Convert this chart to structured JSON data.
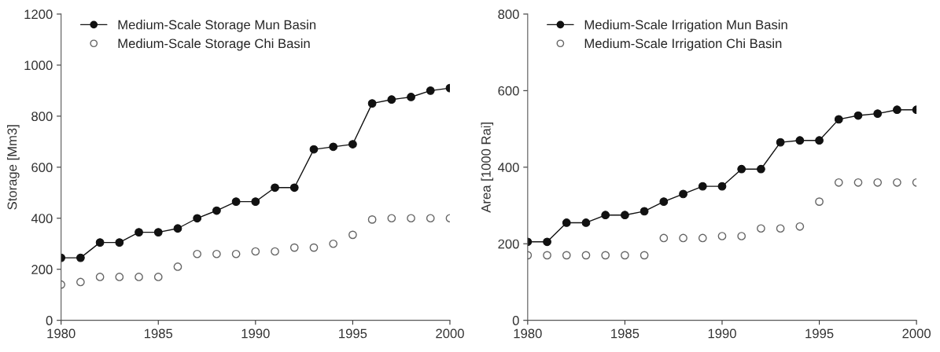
{
  "chart_data": [
    {
      "type": "line",
      "ylabel": "Storage [Mm3]",
      "x": [
        1980,
        1981,
        1982,
        1983,
        1984,
        1985,
        1986,
        1987,
        1988,
        1989,
        1990,
        1991,
        1992,
        1993,
        1994,
        1995,
        1996,
        1997,
        1998,
        1999,
        2000
      ],
      "series": [
        {
          "name": "Medium-Scale Storage Mun Basin",
          "color": "#111111",
          "values": [
            245,
            245,
            305,
            305,
            345,
            345,
            360,
            400,
            430,
            465,
            465,
            520,
            520,
            670,
            680,
            690,
            850,
            865,
            875,
            900,
            910
          ]
        },
        {
          "name": "Medium-Scale Storage Chi Basin",
          "color": "#666666",
          "type": "scatter",
          "values": [
            140,
            150,
            170,
            170,
            170,
            170,
            210,
            260,
            260,
            260,
            270,
            270,
            285,
            285,
            300,
            335,
            395,
            400,
            400,
            400,
            400
          ]
        }
      ],
      "xlim": [
        1980,
        2000
      ],
      "xticks": [
        1980,
        1985,
        1990,
        1995,
        2000
      ],
      "ylim": [
        0,
        1200
      ],
      "yticks": [
        0,
        200,
        400,
        600,
        800,
        1000,
        1200
      ],
      "marker": "circle",
      "legend": "top left",
      "grid": false
    },
    {
      "type": "line",
      "ylabel": "Area [1000 Rai]",
      "x": [
        1980,
        1981,
        1982,
        1983,
        1984,
        1985,
        1986,
        1987,
        1988,
        1989,
        1990,
        1991,
        1992,
        1993,
        1994,
        1995,
        1996,
        1997,
        1998,
        1999,
        2000
      ],
      "series": [
        {
          "name": "Medium-Scale Irrigation Mun Basin",
          "color": "#111111",
          "values": [
            205,
            205,
            255,
            255,
            275,
            275,
            285,
            310,
            330,
            350,
            350,
            395,
            395,
            465,
            470,
            470,
            525,
            535,
            540,
            550,
            550
          ]
        },
        {
          "name": "Medium-Scale Irrigation Chi Basin",
          "color": "#666666",
          "type": "scatter",
          "values": [
            170,
            170,
            170,
            170,
            170,
            170,
            170,
            215,
            215,
            215,
            220,
            220,
            240,
            240,
            245,
            310,
            360,
            360,
            360,
            360,
            360
          ]
        }
      ],
      "xlim": [
        1980,
        2000
      ],
      "xticks": [
        1980,
        1985,
        1990,
        1995,
        2000
      ],
      "ylim": [
        0,
        800
      ],
      "yticks": [
        0,
        200,
        400,
        600,
        800
      ],
      "marker": "circle",
      "legend": "top left",
      "grid": false
    }
  ]
}
